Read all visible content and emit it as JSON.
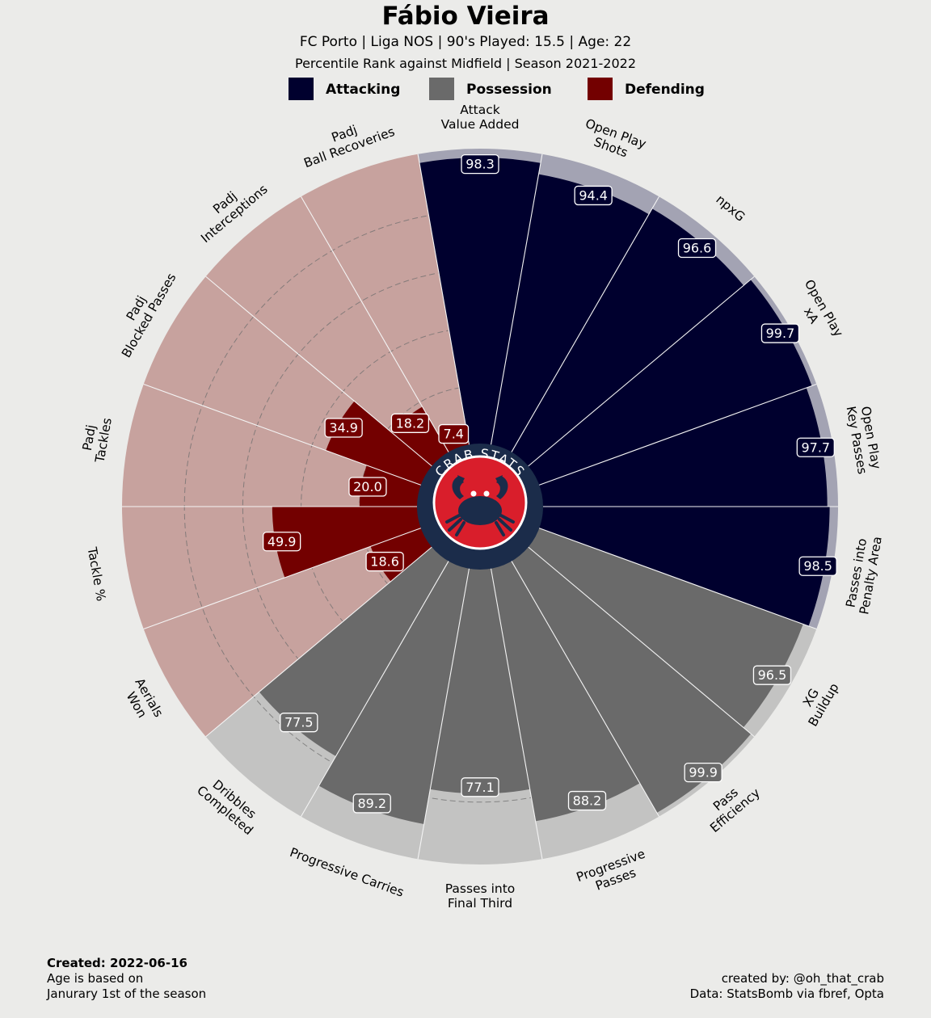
{
  "header": {
    "title": "Fábio Vieira",
    "subtitle_line1": "FC Porto  | Liga NOS | 90's Played: 15.5 | Age: 22",
    "subtitle_line2": "Percentile Rank against Midfield  | Season 2021-2022"
  },
  "legend": [
    {
      "label": "Attacking",
      "color": "#00002e"
    },
    {
      "label": "Possession",
      "color": "#6a6a6a"
    },
    {
      "label": "Defending",
      "color": "#730000"
    }
  ],
  "logo": {
    "text": "CRAB STATS",
    "ring_color": "#1b2c4a",
    "face_color": "#d91e2b",
    "icon": "crab-icon"
  },
  "chart_data": {
    "type": "polar-bar",
    "scale": [
      0,
      100
    ],
    "grid": true,
    "legend_position": "top",
    "categories": [
      {
        "label": "Attack\nValue Added",
        "value": 98.3,
        "group": "Attacking"
      },
      {
        "label": "Open Play\nShots",
        "value": 94.4,
        "group": "Attacking"
      },
      {
        "label": "npxG",
        "value": 96.6,
        "group": "Attacking"
      },
      {
        "label": "Open Play\nxA",
        "value": 99.7,
        "group": "Attacking"
      },
      {
        "label": "Open Play\nKey Passes",
        "value": 97.7,
        "group": "Attacking"
      },
      {
        "label": "Passes into\nPenalty Area",
        "value": 98.5,
        "group": "Attacking"
      },
      {
        "label": "XG\nBuildup",
        "value": 96.5,
        "group": "Possession"
      },
      {
        "label": "Pass\nEfficiency",
        "value": 99.9,
        "group": "Possession"
      },
      {
        "label": "Progressive\nPasses",
        "value": 88.2,
        "group": "Possession"
      },
      {
        "label": "Passes into\nFinal Third",
        "value": 77.1,
        "group": "Possession"
      },
      {
        "label": "Progressive Carries",
        "value": 89.2,
        "group": "Possession"
      },
      {
        "label": "Dribbles\nCompleted",
        "value": 77.5,
        "group": "Possession"
      },
      {
        "label": "Aerials\nWon",
        "value": 18.6,
        "group": "Defending"
      },
      {
        "label": "Tackle %",
        "value": 49.9,
        "group": "Defending"
      },
      {
        "label": "Padj\nTackles",
        "value": 20.0,
        "group": "Defending"
      },
      {
        "label": "Padj\nBlocked Passes",
        "value": 34.9,
        "group": "Defending"
      },
      {
        "label": "Padj\nInterceptions",
        "value": 18.2,
        "group": "Defending"
      },
      {
        "label": "Padj\nBall Recoveries",
        "value": 7.4,
        "group": "Defending"
      }
    ],
    "group_colors": {
      "Attacking": {
        "bar": "#00002e",
        "background": "#a3a3b3"
      },
      "Possession": {
        "bar": "#6a6a6a",
        "background": "#c3c3c2"
      },
      "Defending": {
        "bar": "#730000",
        "background": "#c7a29e"
      }
    }
  },
  "footer": {
    "created": "Created: 2022-06-16",
    "note_line1": "Age is based on",
    "note_line2": "Janurary 1st of the season",
    "credit_line1": "created by: @oh_that_crab",
    "credit_line2": "Data: StatsBomb via fbref, Opta"
  }
}
